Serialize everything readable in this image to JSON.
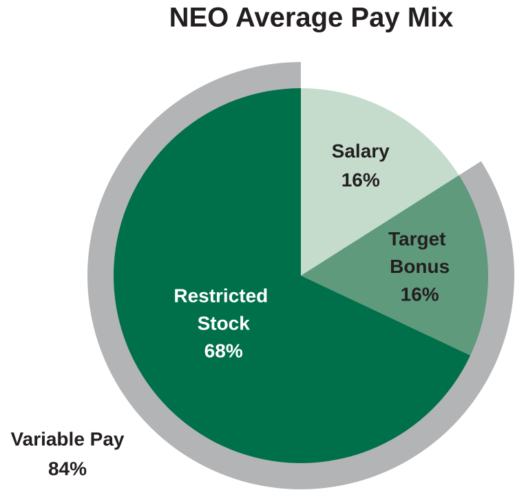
{
  "chart_data": {
    "type": "pie",
    "title": "NEO Average Pay Mix",
    "categories": [
      "Salary",
      "Target Bonus",
      "Restricted Stock"
    ],
    "values": [
      16,
      16,
      68
    ],
    "value_labels": [
      "16%",
      "16%",
      "68%"
    ],
    "colors": [
      "#c5dccd",
      "#5f9a7c",
      "#00704a"
    ],
    "label_colors": [
      "#231f20",
      "#231f20",
      "#ffffff"
    ],
    "group": {
      "label": "Variable Pay",
      "value": 84,
      "value_label": "84%",
      "color": "#b3b4b6"
    }
  }
}
